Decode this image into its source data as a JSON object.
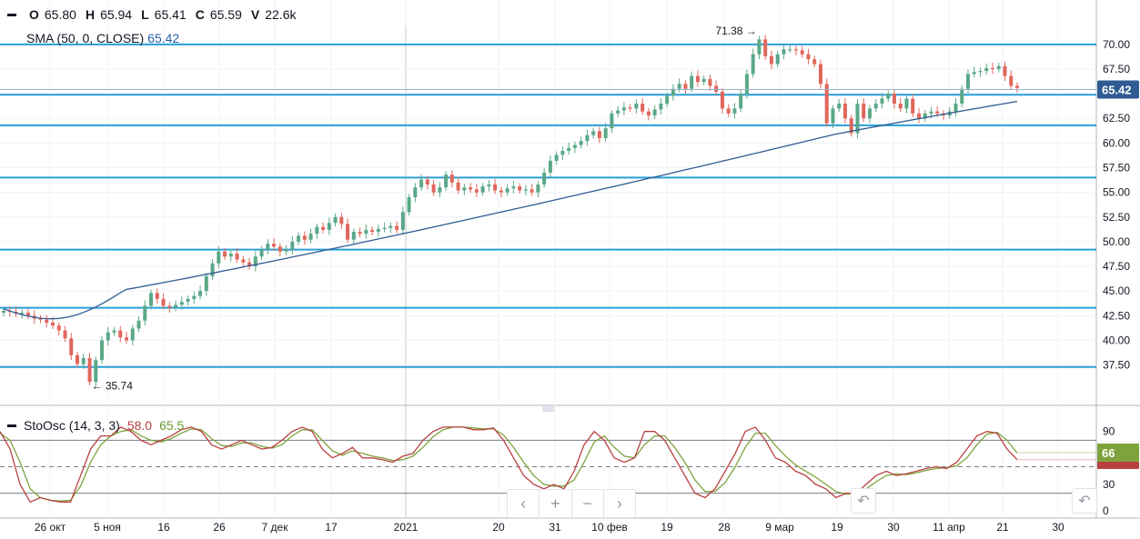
{
  "ohlcv": {
    "o_label": "O",
    "o": "65.80",
    "h_label": "H",
    "h": "65.94",
    "l_label": "L",
    "l": "65.41",
    "c_label": "C",
    "c": "65.59",
    "v_label": "V",
    "v": "22.6k"
  },
  "sma": {
    "label": "SMA (50, 0, CLOSE)",
    "value": "65.42"
  },
  "stoch": {
    "label": "StoOsc (14, 3, 3)",
    "k": "58.0",
    "d": "65.5"
  },
  "price_tag": "65.42",
  "stoch_tag": "66",
  "navigation": {
    "left": "‹",
    "zoom_in": "+",
    "zoom_out": "−",
    "right": "›",
    "reset": "↶"
  },
  "colors": {
    "up": "#5aa887",
    "down": "#e0665c",
    "sma": "#2f5b92",
    "hline": "#2a9fd8",
    "stoch_k": "#b84040",
    "stoch_d": "#7ea33c"
  },
  "chart_data": {
    "type": "candlestick",
    "price_ylim": [
      33.5,
      74.5
    ],
    "price_ticks": [
      "37.50",
      "40.00",
      "42.50",
      "45.00",
      "47.50",
      "50.00",
      "52.50",
      "55.00",
      "57.50",
      "60.00",
      "62.50",
      "65.00",
      "67.50",
      "70.00"
    ],
    "x_labels": [
      "26 окт",
      "5 ноя",
      "16",
      "26",
      "7 дек",
      "17",
      "2021",
      "20",
      "31",
      "10 фев",
      "19",
      "28",
      "9 мар",
      "19",
      "30",
      "11 апр",
      "21",
      "30"
    ],
    "horizontal_levels": [
      70.0,
      64.9,
      61.8,
      56.5,
      49.2,
      43.3,
      37.3
    ],
    "annotations": [
      {
        "text": "71.38",
        "value": 71.38
      },
      {
        "text": "35.74",
        "value": 35.74
      }
    ],
    "candles_close": [
      43.0,
      42.9,
      42.7,
      42.8,
      42.5,
      42.2,
      42.1,
      41.8,
      41.5,
      41.0,
      40.2,
      38.5,
      37.6,
      38.2,
      35.8,
      38.0,
      40.0,
      40.8,
      41.0,
      40.3,
      40.0,
      41.2,
      42.0,
      43.5,
      44.8,
      44.2,
      43.5,
      43.3,
      43.6,
      43.9,
      44.2,
      44.5,
      45.0,
      46.5,
      47.8,
      49.0,
      48.5,
      48.8,
      48.2,
      47.9,
      47.5,
      48.5,
      49.2,
      49.8,
      49.5,
      49.0,
      49.2,
      50.0,
      50.6,
      50.2,
      50.8,
      51.5,
      51.2,
      51.9,
      52.5,
      51.8,
      50.2,
      51.0,
      50.8,
      51.2,
      51.0,
      51.3,
      51.4,
      51.6,
      51.2,
      53.0,
      54.5,
      55.5,
      56.3,
      55.8,
      55.0,
      55.5,
      56.8,
      56.0,
      55.2,
      55.5,
      55.3,
      55.0,
      55.6,
      55.8,
      55.2,
      55.0,
      55.4,
      55.6,
      55.2,
      55.3,
      55.0,
      55.8,
      57.0,
      58.2,
      58.8,
      59.2,
      59.5,
      59.8,
      60.2,
      60.8,
      61.2,
      60.5,
      61.5,
      63.0,
      63.3,
      63.6,
      63.5,
      64.0,
      63.2,
      62.8,
      63.4,
      64.0,
      64.8,
      65.5,
      66.0,
      65.5,
      66.8,
      66.2,
      66.5,
      65.8,
      65.2,
      63.5,
      63.0,
      63.5,
      65.0,
      67.0,
      69.0,
      70.5,
      68.8,
      68.0,
      69.0,
      69.5,
      69.5,
      69.4,
      69.0,
      68.5,
      68.0,
      66.0,
      62.0,
      63.5,
      64.0,
      62.5,
      61.0,
      64.0,
      62.5,
      63.5,
      64.0,
      64.5,
      65.0,
      64.0,
      63.5,
      64.5,
      63.0,
      62.5,
      63.0,
      63.2,
      63.0,
      62.8,
      63.2,
      64.0,
      65.5,
      67.0,
      67.2,
      67.3,
      67.6,
      67.5,
      67.8,
      66.8,
      65.8,
      65.59
    ],
    "sma_series_start": 43.2,
    "sma_series_end": 65.42,
    "stoch_ylim": [
      0,
      100
    ],
    "stoch_ticks": [
      "0",
      "30",
      "60",
      "90"
    ],
    "stoch_levels": [
      80,
      50,
      20
    ],
    "stoch_k_series": [
      90,
      70,
      30,
      10,
      15,
      12,
      10,
      10,
      40,
      70,
      85,
      85,
      95,
      90,
      80,
      75,
      80,
      85,
      92,
      95,
      90,
      75,
      70,
      75,
      80,
      75,
      70,
      72,
      80,
      90,
      95,
      90,
      70,
      60,
      65,
      72,
      60,
      60,
      58,
      55,
      62,
      65,
      80,
      90,
      95,
      95,
      95,
      92,
      92,
      94,
      80,
      60,
      40,
      30,
      25,
      30,
      25,
      45,
      75,
      90,
      80,
      60,
      55,
      60,
      90,
      90,
      80,
      60,
      40,
      20,
      15,
      25,
      45,
      65,
      90,
      95,
      80,
      60,
      55,
      45,
      40,
      30,
      25,
      15,
      20,
      20,
      30,
      40,
      45,
      40,
      42,
      45,
      48,
      50,
      48,
      55,
      70,
      85,
      90,
      88,
      70,
      58
    ],
    "stoch_d_series": [
      88,
      80,
      55,
      25,
      15,
      12,
      11,
      12,
      28,
      55,
      75,
      85,
      90,
      92,
      85,
      80,
      78,
      82,
      88,
      93,
      92,
      82,
      74,
      73,
      77,
      77,
      73,
      71,
      75,
      85,
      92,
      92,
      80,
      68,
      63,
      68,
      65,
      62,
      60,
      57,
      58,
      62,
      72,
      84,
      92,
      95,
      95,
      94,
      93,
      93,
      86,
      72,
      55,
      40,
      30,
      28,
      28,
      35,
      55,
      78,
      85,
      72,
      62,
      60,
      75,
      85,
      85,
      72,
      55,
      35,
      22,
      22,
      32,
      50,
      72,
      88,
      88,
      74,
      62,
      52,
      45,
      38,
      30,
      22,
      19,
      20,
      25,
      33,
      40,
      42,
      41,
      43,
      46,
      48,
      49,
      51,
      60,
      75,
      87,
      89,
      80,
      65.5
    ]
  }
}
